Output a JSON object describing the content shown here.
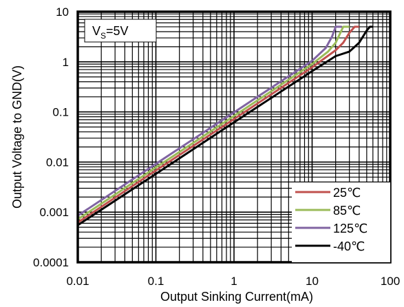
{
  "chart_data": {
    "type": "line",
    "title": "",
    "xlabel": "Output Sinking Current(mA)",
    "ylabel": "Output Voltage to GND(V)",
    "xscale": "log",
    "yscale": "log",
    "xlim": [
      0.01,
      100
    ],
    "ylim": [
      0.0001,
      10
    ],
    "xticks": [
      "0.01",
      "0.1",
      "1",
      "10",
      "100"
    ],
    "yticks": [
      "0.0001",
      "0.001",
      "0.01",
      "0.1",
      "1",
      "10"
    ],
    "grid": true,
    "legend_position": "bottom-right",
    "annotation": {
      "main": "V",
      "sub": "S",
      "rest": "=5V"
    },
    "series": [
      {
        "name": "25℃",
        "color": "#c0504d",
        "x": [
          0.01,
          0.1,
          1,
          10,
          20,
          25,
          30,
          35,
          40
        ],
        "y": [
          0.00062,
          0.0068,
          0.072,
          0.78,
          1.7,
          2.4,
          3.8,
          5.0,
          5.0
        ]
      },
      {
        "name": "85℃",
        "color": "#9bbb59",
        "x": [
          0.01,
          0.1,
          1,
          10,
          16,
          20,
          25,
          30
        ],
        "y": [
          0.00072,
          0.0078,
          0.083,
          0.9,
          1.6,
          2.4,
          5.0,
          5.0
        ]
      },
      {
        "name": "125℃",
        "color": "#8064a2",
        "x": [
          0.01,
          0.1,
          1,
          10,
          15,
          18,
          20,
          24
        ],
        "y": [
          0.00085,
          0.0092,
          0.098,
          1.05,
          1.9,
          3.2,
          5.0,
          5.0
        ]
      },
      {
        "name": "-40℃",
        "color": "#000000",
        "x": [
          0.01,
          0.1,
          1,
          10,
          20,
          30,
          40,
          50,
          55,
          60
        ],
        "y": [
          0.00055,
          0.0058,
          0.062,
          0.65,
          1.3,
          1.6,
          2.4,
          4.2,
          5.0,
          5.0
        ]
      }
    ]
  }
}
